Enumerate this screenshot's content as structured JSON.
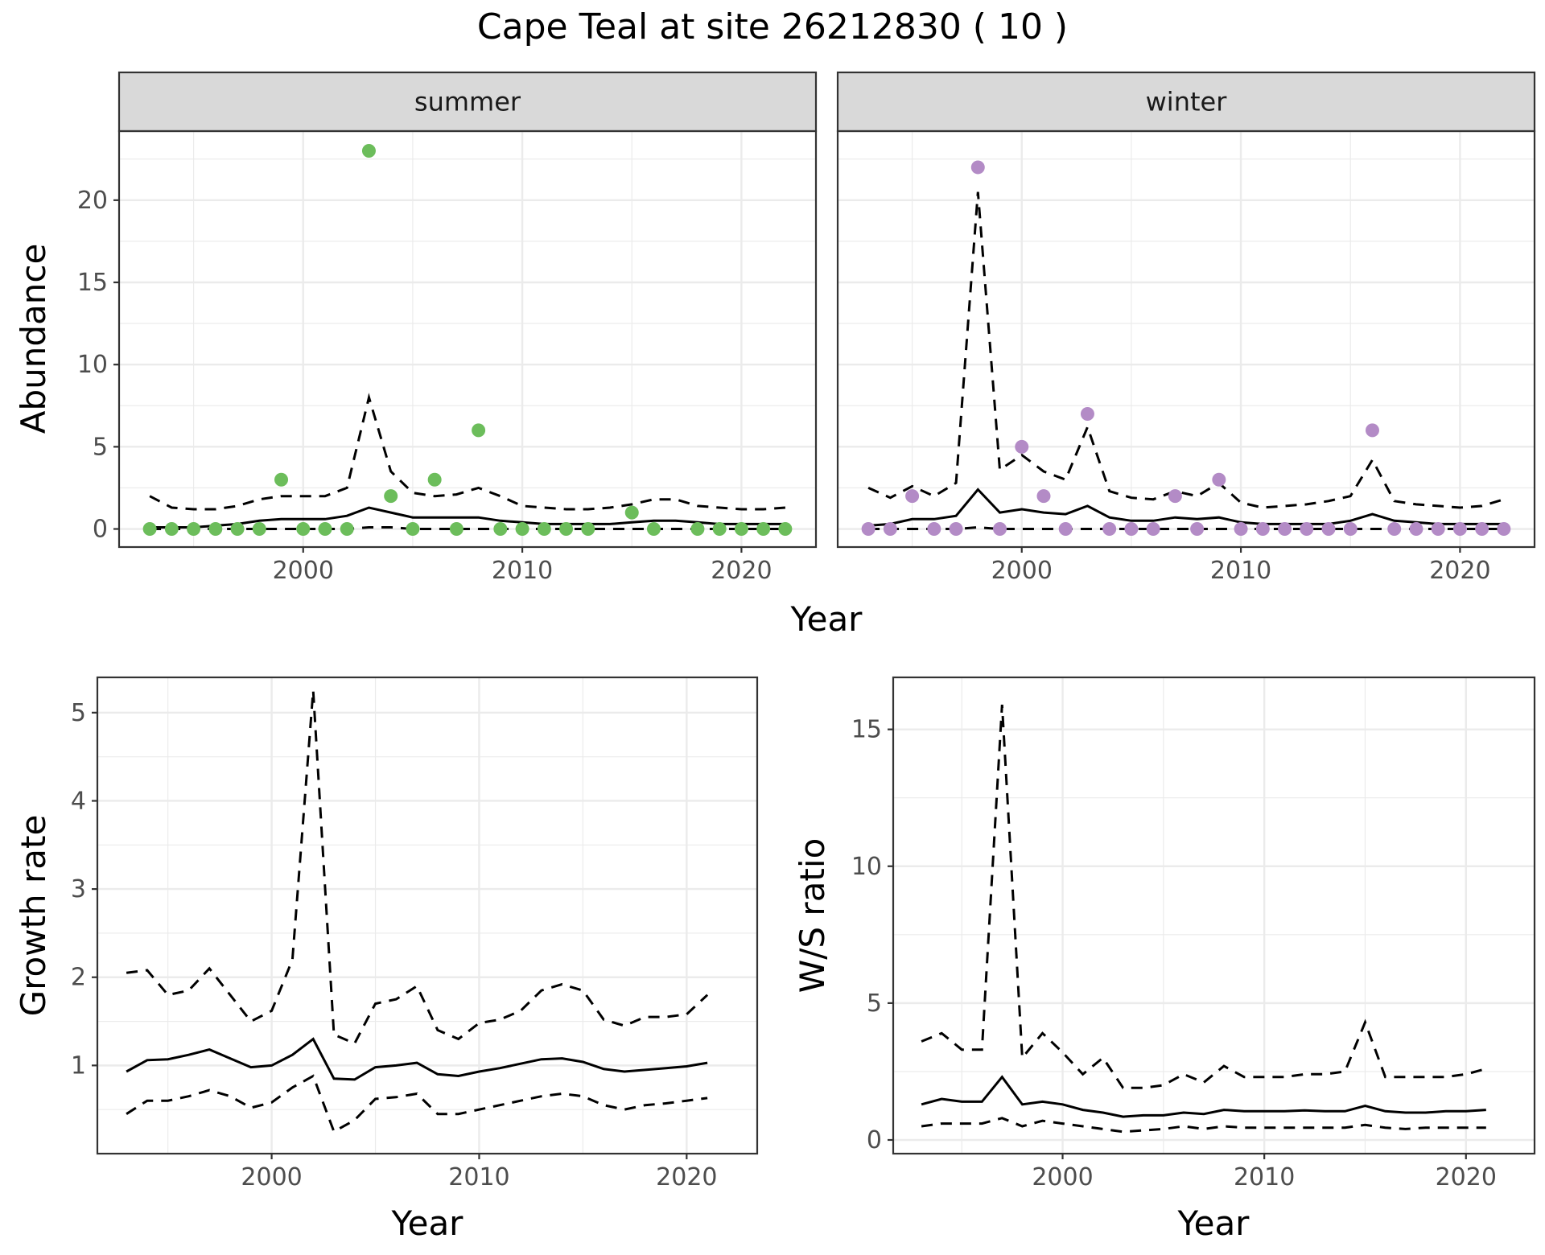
{
  "chart_data": {
    "type": "line",
    "title": "Cape Teal at site 26212830 ( 10 )",
    "colors": {
      "summer_points": "#6cbd5b",
      "winter_points": "#b38bc6",
      "lines": "#000000"
    },
    "abundance": {
      "ylabel": "Abundance",
      "xlabel": "Year",
      "ylim": [
        -1.1,
        24.2
      ],
      "yticks": [
        0,
        5,
        10,
        15,
        20
      ],
      "xlim": [
        1991.6,
        2023.4
      ],
      "xticks": [
        2000,
        2010,
        2020
      ],
      "facets": [
        {
          "label": "summer",
          "observations": {
            "x": [
              1993,
              1994,
              1995,
              1996,
              1997,
              1998,
              1999,
              2000,
              2001,
              2002,
              2003,
              2004,
              2005,
              2006,
              2007,
              2008,
              2009,
              2010,
              2011,
              2012,
              2013,
              2015,
              2016,
              2018,
              2019,
              2020,
              2021,
              2022
            ],
            "y": [
              0,
              0,
              0,
              0,
              0,
              0,
              3,
              0,
              0,
              0,
              23,
              2,
              0,
              3,
              0,
              6,
              0,
              0,
              0,
              0,
              0,
              1,
              0,
              0,
              0,
              0,
              0,
              0
            ]
          },
          "x": [
            1993,
            1994,
            1995,
            1996,
            1997,
            1998,
            1999,
            2000,
            2001,
            2002,
            2003,
            2004,
            2005,
            2006,
            2007,
            2008,
            2009,
            2010,
            2011,
            2012,
            2013,
            2014,
            2015,
            2016,
            2017,
            2018,
            2019,
            2020,
            2021,
            2022
          ],
          "estimate": [
            0.1,
            0.1,
            0.1,
            0.2,
            0.3,
            0.5,
            0.6,
            0.6,
            0.6,
            0.8,
            1.3,
            1.0,
            0.7,
            0.7,
            0.7,
            0.7,
            0.5,
            0.4,
            0.3,
            0.3,
            0.3,
            0.3,
            0.4,
            0.5,
            0.5,
            0.4,
            0.3,
            0.3,
            0.3,
            0.3
          ],
          "upper": [
            2.0,
            1.3,
            1.2,
            1.2,
            1.4,
            1.8,
            2.0,
            2.0,
            2.0,
            2.5,
            8.0,
            3.5,
            2.2,
            2.0,
            2.1,
            2.5,
            2.0,
            1.4,
            1.3,
            1.2,
            1.2,
            1.3,
            1.5,
            1.8,
            1.8,
            1.4,
            1.3,
            1.2,
            1.2,
            1.3
          ],
          "lower": [
            0,
            0,
            0,
            0,
            0,
            0,
            0,
            0,
            0,
            0,
            0.1,
            0.1,
            0,
            0,
            0,
            0,
            0,
            0,
            0,
            0,
            0,
            0,
            0,
            0,
            0,
            0,
            0,
            0,
            0,
            0
          ]
        },
        {
          "label": "winter",
          "observations": {
            "x": [
              1993,
              1994,
              1995,
              1996,
              1997,
              1998,
              1999,
              2000,
              2001,
              2002,
              2003,
              2004,
              2005,
              2006,
              2007,
              2008,
              2009,
              2010,
              2011,
              2012,
              2013,
              2014,
              2015,
              2016,
              2017,
              2018,
              2019,
              2020,
              2021,
              2022
            ],
            "y": [
              0,
              0,
              2,
              0,
              0,
              22,
              0,
              5,
              2,
              0,
              7,
              0,
              0,
              0,
              2,
              0,
              3,
              0,
              0,
              0,
              0,
              0,
              0,
              6,
              0,
              0,
              0,
              0,
              0,
              0
            ]
          },
          "x": [
            1993,
            1994,
            1995,
            1996,
            1997,
            1998,
            1999,
            2000,
            2001,
            2002,
            2003,
            2004,
            2005,
            2006,
            2007,
            2008,
            2009,
            2010,
            2011,
            2012,
            2013,
            2014,
            2015,
            2016,
            2017,
            2018,
            2019,
            2020,
            2021,
            2022
          ],
          "estimate": [
            0.2,
            0.3,
            0.6,
            0.6,
            0.8,
            2.4,
            1.0,
            1.2,
            1.0,
            0.9,
            1.4,
            0.7,
            0.5,
            0.5,
            0.7,
            0.6,
            0.7,
            0.4,
            0.3,
            0.3,
            0.3,
            0.3,
            0.5,
            0.9,
            0.5,
            0.4,
            0.3,
            0.3,
            0.3,
            0.3
          ],
          "upper": [
            2.5,
            1.9,
            2.6,
            2.0,
            2.8,
            20.5,
            3.6,
            4.5,
            3.5,
            3.0,
            6.2,
            2.3,
            1.9,
            1.8,
            2.3,
            2.0,
            2.8,
            1.6,
            1.3,
            1.4,
            1.5,
            1.7,
            2.0,
            4.2,
            1.7,
            1.5,
            1.4,
            1.3,
            1.4,
            1.8
          ],
          "lower": [
            0,
            0,
            0,
            0,
            0,
            0.1,
            0,
            0,
            0,
            0,
            0,
            0,
            0,
            0,
            0,
            0,
            0,
            0,
            0,
            0,
            0,
            0,
            0,
            0,
            0,
            0,
            0,
            0,
            0,
            0
          ]
        }
      ]
    },
    "growth": {
      "ylabel": "Growth rate",
      "xlabel": "Year",
      "ylim": [
        0.0,
        5.4
      ],
      "yticks": [
        1,
        2,
        3,
        4,
        5
      ],
      "xlim": [
        1991.6,
        2023.4
      ],
      "xticks": [
        2000,
        2010,
        2020
      ],
      "x": [
        1993,
        1994,
        1995,
        1996,
        1997,
        1998,
        1999,
        2000,
        2001,
        2002,
        2003,
        2004,
        2005,
        2006,
        2007,
        2008,
        2009,
        2010,
        2011,
        2012,
        2013,
        2014,
        2015,
        2016,
        2017,
        2018,
        2019,
        2020,
        2021
      ],
      "estimate": [
        0.93,
        1.06,
        1.07,
        1.12,
        1.18,
        1.08,
        0.98,
        1.0,
        1.12,
        1.3,
        0.85,
        0.84,
        0.98,
        1.0,
        1.03,
        0.9,
        0.88,
        0.93,
        0.97,
        1.02,
        1.07,
        1.08,
        1.04,
        0.96,
        0.93,
        0.95,
        0.97,
        0.99,
        1.03
      ],
      "upper": [
        2.05,
        2.08,
        1.8,
        1.85,
        2.1,
        1.8,
        1.5,
        1.62,
        2.2,
        5.25,
        1.35,
        1.25,
        1.7,
        1.75,
        1.9,
        1.4,
        1.3,
        1.48,
        1.52,
        1.62,
        1.85,
        1.92,
        1.85,
        1.52,
        1.45,
        1.55,
        1.55,
        1.58,
        1.8
      ],
      "lower": [
        0.45,
        0.6,
        0.6,
        0.65,
        0.72,
        0.65,
        0.52,
        0.58,
        0.75,
        0.88,
        0.25,
        0.38,
        0.62,
        0.64,
        0.68,
        0.45,
        0.45,
        0.5,
        0.55,
        0.6,
        0.65,
        0.68,
        0.65,
        0.55,
        0.5,
        0.55,
        0.57,
        0.6,
        0.63
      ]
    },
    "ratio": {
      "ylabel": "W/S ratio",
      "xlabel": "Year",
      "ylim": [
        -0.5,
        16.9
      ],
      "yticks": [
        0,
        5,
        10,
        15
      ],
      "xlim": [
        1991.6,
        2023.4
      ],
      "xticks": [
        2000,
        2010,
        2020
      ],
      "x": [
        1993,
        1994,
        1995,
        1996,
        1997,
        1998,
        1999,
        2000,
        2001,
        2002,
        2003,
        2004,
        2005,
        2006,
        2007,
        2008,
        2009,
        2010,
        2011,
        2012,
        2013,
        2014,
        2015,
        2016,
        2017,
        2018,
        2019,
        2020,
        2021
      ],
      "estimate": [
        1.3,
        1.5,
        1.4,
        1.4,
        2.3,
        1.3,
        1.4,
        1.3,
        1.1,
        1.0,
        0.85,
        0.9,
        0.9,
        1.0,
        0.95,
        1.1,
        1.05,
        1.05,
        1.05,
        1.08,
        1.05,
        1.05,
        1.25,
        1.05,
        1.0,
        1.0,
        1.05,
        1.05,
        1.1
      ],
      "upper": [
        3.6,
        3.9,
        3.3,
        3.3,
        15.9,
        3.0,
        3.9,
        3.2,
        2.4,
        3.0,
        1.9,
        1.9,
        2.0,
        2.4,
        2.1,
        2.7,
        2.3,
        2.3,
        2.3,
        2.4,
        2.4,
        2.5,
        4.3,
        2.3,
        2.3,
        2.3,
        2.3,
        2.4,
        2.6
      ],
      "lower": [
        0.5,
        0.6,
        0.6,
        0.6,
        0.8,
        0.5,
        0.7,
        0.6,
        0.5,
        0.4,
        0.3,
        0.35,
        0.4,
        0.5,
        0.4,
        0.5,
        0.45,
        0.45,
        0.45,
        0.45,
        0.45,
        0.45,
        0.55,
        0.45,
        0.4,
        0.45,
        0.45,
        0.45,
        0.45
      ]
    }
  }
}
